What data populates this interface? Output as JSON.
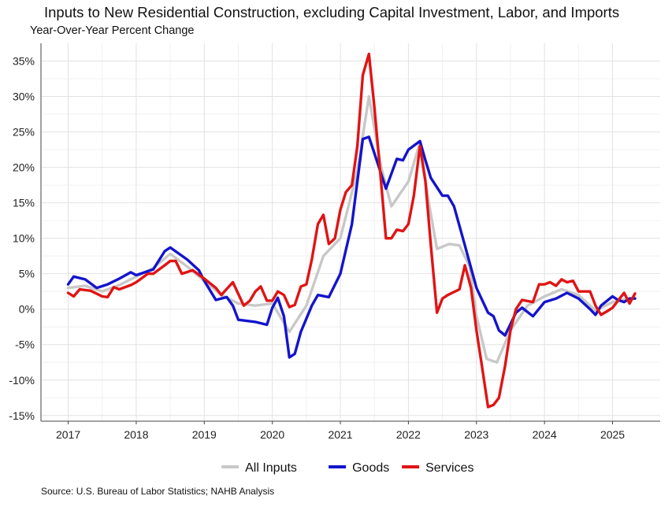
{
  "title": "Inputs to New Residential Construction, excluding Capital Investment, Labor, and Imports",
  "subtitle": "Year-Over-Year Percent Change",
  "source": "Source: U.S. Bureau of Labor Statistics; NAHB Analysis",
  "chart_data": {
    "type": "line",
    "title": "Inputs to New Residential Construction, excluding Capital Investment, Labor, and Imports",
    "subtitle": "Year-Over-Year Percent Change",
    "xlabel": "",
    "ylabel": "",
    "xlim": [
      2016.6,
      2025.7
    ],
    "ylim": [
      -15.8,
      37.5
    ],
    "y_ticks": [
      -15,
      -10,
      -5,
      0,
      5,
      10,
      15,
      20,
      25,
      30,
      35
    ],
    "y_tick_labels": [
      "-15%",
      "-10%",
      "-5%",
      "0%",
      "5%",
      "10%",
      "15%",
      "20%",
      "25%",
      "30%",
      "35%"
    ],
    "x_ticks": [
      2017,
      2018,
      2019,
      2020,
      2021,
      2022,
      2023,
      2024,
      2025
    ],
    "x_tick_labels": [
      "2017",
      "2018",
      "2019",
      "2020",
      "2021",
      "2022",
      "2023",
      "2024",
      "2025"
    ],
    "grid": true,
    "legend_position": "bottom",
    "series": [
      {
        "name": "All Inputs",
        "color": "#c8c8c8",
        "points": [
          [
            2017.0,
            3.0
          ],
          [
            2017.25,
            3.3
          ],
          [
            2017.5,
            2.5
          ],
          [
            2017.75,
            3.4
          ],
          [
            2018.0,
            4.6
          ],
          [
            2018.25,
            5.8
          ],
          [
            2018.5,
            7.8
          ],
          [
            2018.75,
            6.0
          ],
          [
            2019.0,
            4.0
          ],
          [
            2019.25,
            2.0
          ],
          [
            2019.5,
            0.8
          ],
          [
            2019.75,
            0.5
          ],
          [
            2020.0,
            0.8
          ],
          [
            2020.25,
            -3.2
          ],
          [
            2020.5,
            0.5
          ],
          [
            2020.75,
            7.5
          ],
          [
            2021.0,
            10.0
          ],
          [
            2021.25,
            19.5
          ],
          [
            2021.42,
            30.0
          ],
          [
            2021.6,
            20.0
          ],
          [
            2021.75,
            14.5
          ],
          [
            2022.0,
            18.0
          ],
          [
            2022.17,
            23.5
          ],
          [
            2022.3,
            15.0
          ],
          [
            2022.42,
            8.5
          ],
          [
            2022.6,
            9.2
          ],
          [
            2022.75,
            9.0
          ],
          [
            2022.9,
            6.0
          ],
          [
            2023.0,
            -1.0
          ],
          [
            2023.15,
            -7.0
          ],
          [
            2023.3,
            -7.5
          ],
          [
            2023.5,
            -3.0
          ],
          [
            2023.75,
            0.5
          ],
          [
            2024.0,
            1.8
          ],
          [
            2024.25,
            2.8
          ],
          [
            2024.5,
            2.0
          ],
          [
            2024.75,
            -0.2
          ],
          [
            2025.0,
            1.0
          ],
          [
            2025.25,
            1.5
          ],
          [
            2025.33,
            1.6
          ]
        ]
      },
      {
        "name": "Goods",
        "color": "#1414cc",
        "points": [
          [
            2017.0,
            3.5
          ],
          [
            2017.08,
            4.6
          ],
          [
            2017.25,
            4.2
          ],
          [
            2017.42,
            3.0
          ],
          [
            2017.58,
            3.5
          ],
          [
            2017.75,
            4.3
          ],
          [
            2017.92,
            5.2
          ],
          [
            2018.0,
            4.8
          ],
          [
            2018.25,
            5.6
          ],
          [
            2018.42,
            8.2
          ],
          [
            2018.5,
            8.7
          ],
          [
            2018.75,
            7.0
          ],
          [
            2018.92,
            5.5
          ],
          [
            2019.0,
            4.0
          ],
          [
            2019.17,
            1.3
          ],
          [
            2019.33,
            1.7
          ],
          [
            2019.42,
            0.5
          ],
          [
            2019.5,
            -1.5
          ],
          [
            2019.75,
            -1.8
          ],
          [
            2019.92,
            -2.2
          ],
          [
            2020.0,
            0.2
          ],
          [
            2020.08,
            1.6
          ],
          [
            2020.17,
            -1.0
          ],
          [
            2020.25,
            -6.8
          ],
          [
            2020.33,
            -6.3
          ],
          [
            2020.42,
            -3.2
          ],
          [
            2020.58,
            0.5
          ],
          [
            2020.67,
            2.0
          ],
          [
            2020.83,
            1.7
          ],
          [
            2021.0,
            5.0
          ],
          [
            2021.17,
            12.0
          ],
          [
            2021.25,
            18.0
          ],
          [
            2021.33,
            24.0
          ],
          [
            2021.42,
            24.3
          ],
          [
            2021.5,
            22.0
          ],
          [
            2021.67,
            17.0
          ],
          [
            2021.83,
            21.2
          ],
          [
            2021.92,
            21.0
          ],
          [
            2022.0,
            22.5
          ],
          [
            2022.17,
            23.7
          ],
          [
            2022.25,
            21.0
          ],
          [
            2022.33,
            18.5
          ],
          [
            2022.5,
            16.0
          ],
          [
            2022.58,
            16.0
          ],
          [
            2022.67,
            14.5
          ],
          [
            2022.83,
            9.0
          ],
          [
            2023.0,
            3.0
          ],
          [
            2023.17,
            -0.5
          ],
          [
            2023.25,
            -1.0
          ],
          [
            2023.33,
            -3.0
          ],
          [
            2023.42,
            -3.7
          ],
          [
            2023.58,
            -0.5
          ],
          [
            2023.67,
            0.2
          ],
          [
            2023.83,
            -1.0
          ],
          [
            2024.0,
            1.0
          ],
          [
            2024.17,
            1.5
          ],
          [
            2024.33,
            2.3
          ],
          [
            2024.5,
            1.5
          ],
          [
            2024.67,
            0.0
          ],
          [
            2024.75,
            -0.8
          ],
          [
            2024.83,
            0.5
          ],
          [
            2025.0,
            1.8
          ],
          [
            2025.08,
            1.3
          ],
          [
            2025.17,
            1.0
          ],
          [
            2025.25,
            1.5
          ],
          [
            2025.33,
            1.5
          ]
        ]
      },
      {
        "name": "Services",
        "color": "#e01414",
        "points": [
          [
            2017.0,
            2.3
          ],
          [
            2017.08,
            1.8
          ],
          [
            2017.17,
            2.8
          ],
          [
            2017.33,
            2.6
          ],
          [
            2017.5,
            1.8
          ],
          [
            2017.58,
            1.7
          ],
          [
            2017.67,
            3.1
          ],
          [
            2017.75,
            2.8
          ],
          [
            2017.92,
            3.4
          ],
          [
            2018.0,
            3.8
          ],
          [
            2018.17,
            5.0
          ],
          [
            2018.25,
            5.0
          ],
          [
            2018.42,
            6.2
          ],
          [
            2018.5,
            6.8
          ],
          [
            2018.58,
            6.8
          ],
          [
            2018.67,
            5.0
          ],
          [
            2018.83,
            5.5
          ],
          [
            2019.0,
            4.3
          ],
          [
            2019.17,
            3.0
          ],
          [
            2019.25,
            2.0
          ],
          [
            2019.42,
            3.8
          ],
          [
            2019.58,
            0.5
          ],
          [
            2019.67,
            1.2
          ],
          [
            2019.75,
            2.5
          ],
          [
            2019.83,
            3.2
          ],
          [
            2019.92,
            1.2
          ],
          [
            2020.0,
            1.2
          ],
          [
            2020.08,
            2.5
          ],
          [
            2020.17,
            2.0
          ],
          [
            2020.25,
            0.3
          ],
          [
            2020.33,
            0.6
          ],
          [
            2020.42,
            3.2
          ],
          [
            2020.5,
            3.5
          ],
          [
            2020.58,
            7.0
          ],
          [
            2020.67,
            12.0
          ],
          [
            2020.75,
            13.3
          ],
          [
            2020.83,
            9.2
          ],
          [
            2020.92,
            10.0
          ],
          [
            2021.0,
            14.0
          ],
          [
            2021.08,
            16.5
          ],
          [
            2021.17,
            17.5
          ],
          [
            2021.25,
            23.0
          ],
          [
            2021.33,
            33.0
          ],
          [
            2021.42,
            36.0
          ],
          [
            2021.5,
            28.5
          ],
          [
            2021.58,
            20.0
          ],
          [
            2021.67,
            10.0
          ],
          [
            2021.75,
            10.0
          ],
          [
            2021.83,
            11.2
          ],
          [
            2021.92,
            11.0
          ],
          [
            2022.0,
            12.0
          ],
          [
            2022.08,
            16.0
          ],
          [
            2022.17,
            23.0
          ],
          [
            2022.25,
            18.0
          ],
          [
            2022.33,
            9.0
          ],
          [
            2022.42,
            -0.5
          ],
          [
            2022.5,
            1.5
          ],
          [
            2022.58,
            2.0
          ],
          [
            2022.75,
            2.8
          ],
          [
            2022.83,
            6.2
          ],
          [
            2022.92,
            3.0
          ],
          [
            2023.0,
            -3.0
          ],
          [
            2023.08,
            -8.0
          ],
          [
            2023.17,
            -13.8
          ],
          [
            2023.25,
            -13.5
          ],
          [
            2023.33,
            -12.5
          ],
          [
            2023.42,
            -8.0
          ],
          [
            2023.5,
            -3.0
          ],
          [
            2023.58,
            0.0
          ],
          [
            2023.67,
            1.3
          ],
          [
            2023.83,
            1.0
          ],
          [
            2023.92,
            3.5
          ],
          [
            2024.0,
            3.5
          ],
          [
            2024.08,
            3.8
          ],
          [
            2024.17,
            3.3
          ],
          [
            2024.25,
            4.2
          ],
          [
            2024.33,
            3.8
          ],
          [
            2024.42,
            4.0
          ],
          [
            2024.5,
            2.5
          ],
          [
            2024.67,
            2.5
          ],
          [
            2024.75,
            0.5
          ],
          [
            2024.83,
            -0.8
          ],
          [
            2024.92,
            -0.3
          ],
          [
            2025.0,
            0.2
          ],
          [
            2025.17,
            2.3
          ],
          [
            2025.25,
            0.8
          ],
          [
            2025.33,
            2.2
          ]
        ]
      }
    ]
  }
}
